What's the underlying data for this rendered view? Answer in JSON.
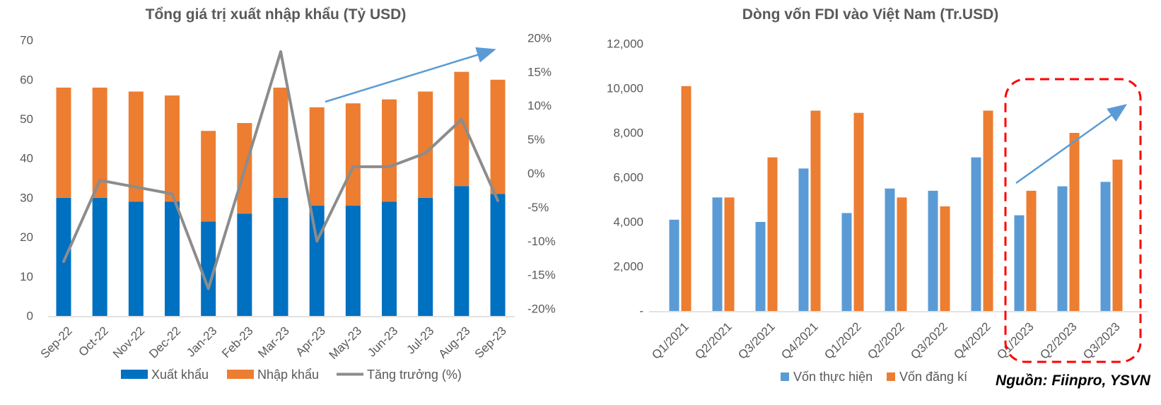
{
  "source_note": "Nguồn: Fiinpro, YSVN",
  "chart_data": [
    {
      "id": "trade",
      "type": "bar",
      "subtype": "stacked-bars-with-line",
      "title": "Tổng giá trị xuất nhập khẩu (Tỷ USD)",
      "categories": [
        "Sep-22",
        "Oct-22",
        "Nov-22",
        "Dec-22",
        "Jan-23",
        "Feb-23",
        "Mar-23",
        "Apr-23",
        "May-23",
        "Jun-23",
        "Jul-23",
        "Aug-23",
        "Sep-23"
      ],
      "series": [
        {
          "name": "Xuất khẩu",
          "type": "bar-stack",
          "color": "#0070C0",
          "values": [
            30,
            30,
            29,
            29,
            24,
            26,
            30,
            28,
            28,
            29,
            30,
            33,
            31
          ]
        },
        {
          "name": "Nhập khẩu",
          "type": "bar-stack",
          "color": "#ED7D31",
          "values": [
            28,
            28,
            28,
            27,
            23,
            23,
            28,
            25,
            26,
            26,
            27,
            29,
            29
          ]
        },
        {
          "name": "Tăng trưởng (%)",
          "type": "line",
          "axis": "right",
          "color": "#8C8C8C",
          "values": [
            -13,
            -1,
            -2,
            -3,
            -17,
            0.5,
            18,
            -10,
            1,
            1,
            3,
            8,
            -4
          ]
        }
      ],
      "y_left": {
        "min": 0,
        "max": 70,
        "step": 10,
        "ticks": [
          "0",
          "10",
          "20",
          "30",
          "40",
          "50",
          "60",
          "70"
        ]
      },
      "y_right": {
        "min": -20,
        "max": 20,
        "step": 5,
        "ticks": [
          "20%",
          "15%",
          "10%",
          "5%",
          "0%",
          "-5%",
          "-10%",
          "-15%",
          "-20%"
        ]
      },
      "legend_position": "bottom",
      "grid": false,
      "annotations": {
        "trend_arrow": true,
        "arrow_color": "#5B9BD5"
      }
    },
    {
      "id": "fdi",
      "type": "bar",
      "subtype": "grouped-bars",
      "title": "Dòng vốn FDI vào Việt Nam (Tr.USD)",
      "categories": [
        "Q1/2021",
        "Q2/2021",
        "Q3/2021",
        "Q4/2021",
        "Q1/2022",
        "Q2/2022",
        "Q3/2022",
        "Q4/2022",
        "Q1/2023",
        "Q2/2023",
        "Q3/2023"
      ],
      "series": [
        {
          "name": "Vốn thực hiện",
          "color": "#5B9BD5",
          "values": [
            4100,
            5100,
            4000,
            6400,
            4400,
            5500,
            5400,
            6900,
            4300,
            5600,
            5800
          ]
        },
        {
          "name": "Vốn đăng kí",
          "color": "#ED7D31",
          "values": [
            10100,
            5100,
            6900,
            9000,
            8900,
            5100,
            4700,
            9000,
            5400,
            8000,
            6800
          ]
        }
      ],
      "y": {
        "min": 0,
        "max": 12000,
        "step": 2000,
        "ticks": [
          "-",
          "2,000",
          "4,000",
          "6,000",
          "8,000",
          "10,000",
          "12,000"
        ]
      },
      "legend_position": "bottom",
      "grid": false,
      "highlight": {
        "quarters": [
          "Q1/2023",
          "Q2/2023",
          "Q3/2023"
        ],
        "style": "red-dashed-rounded-box",
        "color": "#FF0000"
      },
      "annotations": {
        "trend_arrow": true,
        "arrow_color": "#5B9BD5"
      }
    }
  ]
}
